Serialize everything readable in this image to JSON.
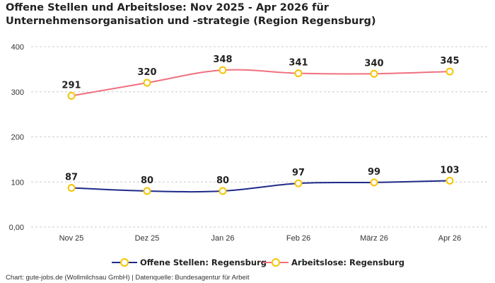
{
  "title": "Offene Stellen und Arbeitslose: Nov 2025 - Apr 2026 für Unternehmensorganisation und -strategie (Region Regensburg)",
  "credit": "Chart: gute-jobs.de (Wollmilchsau GmbH) | Datenquelle: Bundesagentur für Arbeit",
  "colors": {
    "offene_stellen": "#1f2a8a",
    "arbeitslose": "#f07080",
    "marker": "#f5c400",
    "grid": "#cccccc"
  },
  "chart_data": {
    "type": "line",
    "title": "Offene Stellen und Arbeitslose: Nov 2025 - Apr 2026 für Unternehmensorganisation und -strategie (Region Regensburg)",
    "categories": [
      "Nov 25",
      "Dez 25",
      "Jan 26",
      "Feb 26",
      "März 26",
      "Apr 26"
    ],
    "series": [
      {
        "name": "Offene Stellen: Regensburg",
        "values": [
          87,
          80,
          80,
          97,
          99,
          103
        ]
      },
      {
        "name": "Arbeitslose: Regensburg",
        "values": [
          291,
          320,
          348,
          341,
          340,
          345
        ]
      }
    ],
    "ylim": [
      0,
      400
    ],
    "yticks": [
      0,
      100,
      200,
      300,
      400
    ],
    "ytick_labels": [
      "0,00",
      "100",
      "200",
      "300",
      "400"
    ],
    "grid": true,
    "legend": "bottom",
    "xlabel": "",
    "ylabel": ""
  }
}
